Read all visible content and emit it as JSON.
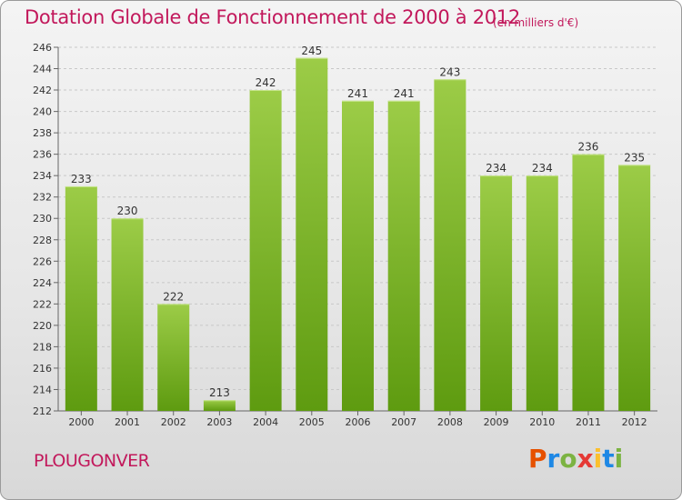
{
  "header": {
    "title": "Dotation Globale de Fonctionnement de 2000 à 2012",
    "unit": "(en milliers d'€)"
  },
  "footer": {
    "commune": "PLOUGONVER",
    "logo_text": "Proxiti"
  },
  "colors": {
    "title": "#c2185b",
    "bar_top": "#9ccc47",
    "bar_bottom": "#5e9b10",
    "logo_letters": [
      "#e65100",
      "#1e88e5",
      "#7cb342",
      "#e53935",
      "#fbc02d",
      "#1e88e5",
      "#7cb342"
    ]
  },
  "chart_data": {
    "type": "bar",
    "categories": [
      "2000",
      "2001",
      "2002",
      "2003",
      "2004",
      "2005",
      "2006",
      "2007",
      "2008",
      "2009",
      "2010",
      "2011",
      "2012"
    ],
    "values": [
      233,
      230,
      222,
      213,
      242,
      245,
      241,
      241,
      243,
      234,
      234,
      236,
      235
    ],
    "title": "Dotation Globale de Fonctionnement de 2000 à 2012",
    "ylim": [
      212,
      246
    ],
    "yticks": [
      212,
      214,
      216,
      218,
      220,
      222,
      224,
      226,
      228,
      230,
      232,
      234,
      236,
      238,
      240,
      242,
      244,
      246
    ],
    "grid": true,
    "data_labels": true
  }
}
